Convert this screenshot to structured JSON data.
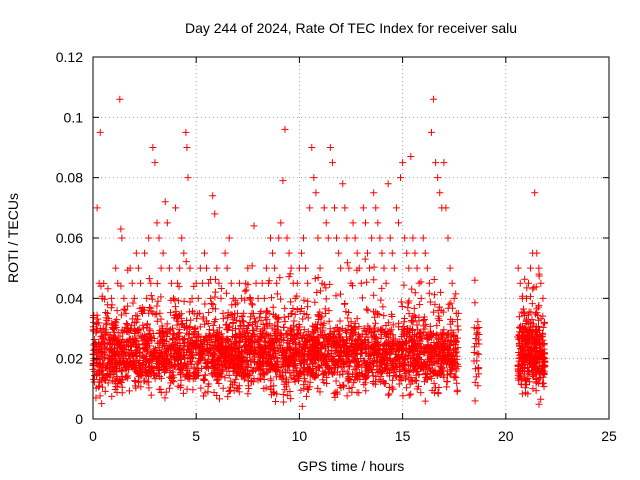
{
  "chart_data": {
    "type": "scatter",
    "title": "Day 244 of 2024, Rate Of TEC Index for receiver salu",
    "xlabel": "GPS time / hours",
    "ylabel": "ROTI / TECUs",
    "xlim": [
      0,
      25
    ],
    "ylim": [
      0,
      0.12
    ],
    "xticks": [
      0,
      5,
      10,
      15,
      20,
      25
    ],
    "xtick_labels": [
      "0",
      "5",
      "10",
      "15",
      "20",
      "25"
    ],
    "yticks": [
      0,
      0.02,
      0.04,
      0.06,
      0.08,
      0.1,
      0.12
    ],
    "ytick_labels": [
      "0",
      "0.02",
      "0.04",
      "0.06",
      "0.08",
      "0.1",
      "0.12"
    ],
    "grid": true,
    "marker": "plus",
    "color": "#ff0000",
    "series": [
      {
        "name": "ROTI",
        "note": "dense band ~0.01-0.035 from 0 to 17.7 h and 20.5 to 21.9 h; gap 17.7-20.5 h except cluster near 18.6 h",
        "x": [
          0.05,
          0.1,
          0.2,
          0.3,
          0.35,
          0.45,
          0.5,
          0.6,
          0.7,
          0.8,
          0.9,
          1.0,
          1.1,
          1.2,
          1.3,
          1.35,
          1.4,
          1.5,
          1.6,
          1.7,
          1.8,
          1.9,
          2.0,
          2.1,
          2.2,
          2.3,
          2.4,
          2.5,
          2.6,
          2.7,
          2.8,
          2.9,
          3.0,
          3.1,
          3.2,
          3.3,
          3.4,
          3.5,
          3.6,
          3.7,
          3.8,
          3.9,
          4.0,
          4.1,
          4.2,
          4.3,
          4.4,
          4.5,
          4.55,
          4.6,
          4.7,
          4.8,
          4.9,
          5.0,
          5.1,
          5.2,
          5.3,
          5.4,
          5.5,
          5.6,
          5.7,
          5.8,
          5.9,
          6.0,
          6.1,
          6.2,
          6.3,
          6.4,
          6.5,
          6.6,
          6.7,
          6.8,
          6.9,
          7.0,
          7.1,
          7.2,
          7.3,
          7.4,
          7.5,
          7.6,
          7.7,
          7.8,
          7.9,
          8.0,
          8.1,
          8.2,
          8.3,
          8.4,
          8.5,
          8.6,
          8.7,
          8.8,
          8.9,
          9.0,
          9.1,
          9.2,
          9.3,
          9.4,
          9.5,
          9.6,
          9.7,
          9.8,
          9.9,
          10.0,
          10.1,
          10.2,
          10.3,
          10.4,
          10.5,
          10.6,
          10.7,
          10.8,
          10.9,
          11.0,
          11.1,
          11.2,
          11.3,
          11.4,
          11.5,
          11.6,
          11.7,
          11.8,
          11.9,
          12.0,
          12.1,
          12.2,
          12.3,
          12.4,
          12.5,
          12.6,
          12.7,
          12.8,
          12.9,
          13.0,
          13.1,
          13.2,
          13.3,
          13.4,
          13.5,
          13.6,
          13.7,
          13.8,
          13.9,
          14.0,
          14.1,
          14.2,
          14.3,
          14.4,
          14.5,
          14.6,
          14.7,
          14.8,
          14.9,
          15.0,
          15.1,
          15.2,
          15.3,
          15.4,
          15.5,
          15.6,
          15.7,
          15.8,
          15.9,
          16.0,
          16.1,
          16.2,
          16.3,
          16.4,
          16.5,
          16.6,
          16.7,
          16.8,
          16.9,
          17.0,
          17.1,
          17.2,
          17.3,
          17.4,
          17.5,
          17.6,
          17.7,
          18.5,
          18.6,
          18.7,
          20.6,
          20.7,
          20.8,
          20.9,
          21.0,
          21.1,
          21.2,
          21.3,
          21.4,
          21.5,
          21.6,
          21.7,
          21.8
        ],
        "y": [
          0.02,
          0.025,
          0.07,
          0.045,
          0.095,
          0.04,
          0.03,
          0.028,
          0.035,
          0.025,
          0.04,
          0.03,
          0.05,
          0.045,
          0.106,
          0.063,
          0.06,
          0.04,
          0.035,
          0.03,
          0.05,
          0.045,
          0.04,
          0.055,
          0.05,
          0.045,
          0.035,
          0.055,
          0.04,
          0.06,
          0.045,
          0.09,
          0.085,
          0.065,
          0.06,
          0.05,
          0.055,
          0.072,
          0.065,
          0.05,
          0.045,
          0.04,
          0.07,
          0.045,
          0.05,
          0.06,
          0.055,
          0.095,
          0.09,
          0.08,
          0.05,
          0.04,
          0.035,
          0.045,
          0.04,
          0.05,
          0.045,
          0.055,
          0.05,
          0.045,
          0.04,
          0.074,
          0.068,
          0.05,
          0.045,
          0.04,
          0.035,
          0.055,
          0.05,
          0.06,
          0.045,
          0.04,
          0.038,
          0.035,
          0.045,
          0.04,
          0.035,
          0.045,
          0.05,
          0.04,
          0.035,
          0.064,
          0.045,
          0.04,
          0.035,
          0.045,
          0.04,
          0.05,
          0.045,
          0.06,
          0.055,
          0.05,
          0.045,
          0.06,
          0.065,
          0.079,
          0.096,
          0.06,
          0.055,
          0.05,
          0.045,
          0.04,
          0.045,
          0.05,
          0.055,
          0.06,
          0.05,
          0.045,
          0.07,
          0.09,
          0.08,
          0.075,
          0.06,
          0.05,
          0.045,
          0.07,
          0.065,
          0.06,
          0.09,
          0.085,
          0.07,
          0.06,
          0.055,
          0.05,
          0.078,
          0.07,
          0.06,
          0.05,
          0.045,
          0.065,
          0.06,
          0.055,
          0.05,
          0.045,
          0.07,
          0.065,
          0.055,
          0.05,
          0.06,
          0.075,
          0.07,
          0.065,
          0.06,
          0.055,
          0.05,
          0.045,
          0.078,
          0.06,
          0.055,
          0.05,
          0.07,
          0.065,
          0.08,
          0.085,
          0.06,
          0.055,
          0.05,
          0.087,
          0.06,
          0.055,
          0.05,
          0.045,
          0.04,
          0.06,
          0.055,
          0.05,
          0.045,
          0.095,
          0.106,
          0.085,
          0.08,
          0.075,
          0.07,
          0.085,
          0.07,
          0.06,
          0.05,
          0.045,
          0.04,
          0.035,
          0.035,
          0.046,
          0.03,
          0.028,
          0.05,
          0.045,
          0.04,
          0.035,
          0.04,
          0.045,
          0.05,
          0.055,
          0.075,
          0.055,
          0.05,
          0.045,
          0.04
        ]
      }
    ]
  }
}
